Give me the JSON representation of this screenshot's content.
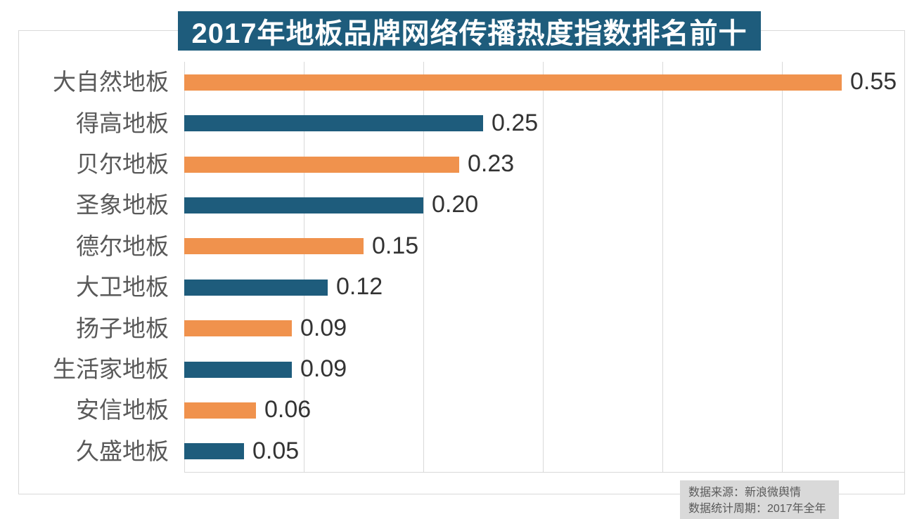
{
  "title": "2017年地板品牌网络传播热度指数排名前十",
  "source_note": {
    "line1": "数据来源：新浪微舆情",
    "line2": "数据统计周期：2017年全年"
  },
  "colors": {
    "banner_bg": "#1E5C7C",
    "bar_orange": "#F0924D",
    "bar_teal": "#1E5C7C",
    "grid": "#D9D9D9",
    "frame_border": "#D9D9D9",
    "category_text": "#595959",
    "value_text": "#333333",
    "source_bg": "#D9D9D9",
    "source_text": "#595959",
    "title_text": "#FFFFFF"
  },
  "chart_data": {
    "type": "bar",
    "orientation": "horizontal",
    "title": "2017年地板品牌网络传播热度指数排名前十",
    "categories": [
      "大自然地板",
      "得高地板",
      "贝尔地板",
      "圣象地板",
      "德尔地板",
      "大卫地板",
      "扬子地板",
      "生活家地板",
      "安信地板",
      "久盛地板"
    ],
    "values": [
      0.55,
      0.25,
      0.23,
      0.2,
      0.15,
      0.12,
      0.09,
      0.09,
      0.06,
      0.05
    ],
    "value_labels": [
      "0.55",
      "0.25",
      "0.23",
      "0.20",
      "0.15",
      "0.12",
      "0.09",
      "0.09",
      "0.06",
      "0.05"
    ],
    "bar_color_pattern": [
      "#F0924D",
      "#1E5C7C"
    ],
    "xlabel": "",
    "ylabel": "",
    "xlim": [
      0,
      0.6
    ],
    "gridline_interval": 0.1,
    "grid": true,
    "legend": false
  }
}
